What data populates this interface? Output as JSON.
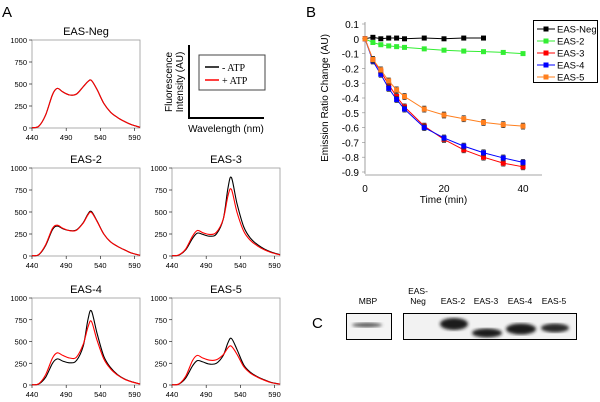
{
  "panel_labels": {
    "a": "A",
    "b": "B",
    "c": "C"
  },
  "colors": {
    "minus_atp": "#000000",
    "plus_atp": "#ff0000",
    "eas_neg": "#000000",
    "eas_2": "#33ee33",
    "eas_3": "#ff0000",
    "eas_4": "#0000ff",
    "eas_5": "#ff7f1e"
  },
  "schematic": {
    "ylabel_line1": "Fluorescence",
    "ylabel_line2": "Intensity (AU)",
    "xlabel": "Wavelength (nm)",
    "legend": [
      "- ATP",
      "+ ATP"
    ]
  },
  "chart_data": [
    {
      "type": "line",
      "title": "EAS-Neg",
      "xlim": [
        440,
        598
      ],
      "ylim": [
        0,
        1000
      ],
      "xticks": [
        440,
        490,
        540,
        590
      ],
      "yticks": [
        0,
        250,
        500,
        750,
        1000
      ],
      "x": [
        440,
        450,
        460,
        470,
        477,
        485,
        495,
        505,
        515,
        522,
        527,
        535,
        545,
        555,
        565,
        575,
        585,
        598
      ],
      "series": [
        {
          "name": "- ATP",
          "values": [
            3,
            20,
            150,
            380,
            450,
            410,
            375,
            385,
            470,
            530,
            540,
            440,
            280,
            180,
            120,
            75,
            40,
            8
          ]
        },
        {
          "name": "+ ATP",
          "values": [
            3,
            20,
            150,
            380,
            450,
            410,
            375,
            385,
            470,
            530,
            540,
            440,
            280,
            180,
            120,
            75,
            40,
            8
          ]
        }
      ]
    },
    {
      "type": "line",
      "title": "EAS-2",
      "xlim": [
        440,
        598
      ],
      "ylim": [
        0,
        1000
      ],
      "xticks": [
        440,
        490,
        540,
        590
      ],
      "yticks": [
        0,
        250,
        500,
        750,
        1000
      ],
      "x": [
        440,
        450,
        460,
        470,
        477,
        485,
        495,
        505,
        515,
        522,
        527,
        535,
        545,
        555,
        565,
        575,
        585,
        598
      ],
      "series": [
        {
          "name": "- ATP",
          "values": [
            3,
            15,
            120,
            300,
            340,
            310,
            290,
            295,
            380,
            480,
            505,
            400,
            250,
            160,
            110,
            70,
            35,
            8
          ]
        },
        {
          "name": "+ ATP",
          "values": [
            3,
            17,
            130,
            315,
            350,
            315,
            288,
            292,
            375,
            470,
            495,
            395,
            250,
            160,
            110,
            70,
            35,
            8
          ]
        }
      ]
    },
    {
      "type": "line",
      "title": "EAS-3",
      "xlim": [
        440,
        598
      ],
      "ylim": [
        0,
        1000
      ],
      "xticks": [
        440,
        490,
        540,
        590
      ],
      "yticks": [
        0,
        250,
        500,
        750,
        1000
      ],
      "x": [
        440,
        450,
        460,
        470,
        477,
        485,
        495,
        505,
        515,
        522,
        527,
        535,
        545,
        555,
        565,
        575,
        585,
        598
      ],
      "series": [
        {
          "name": "- ATP",
          "values": [
            3,
            10,
            70,
            200,
            260,
            245,
            225,
            250,
            420,
            780,
            890,
            600,
            330,
            200,
            130,
            80,
            45,
            15
          ]
        },
        {
          "name": "+ ATP",
          "values": [
            3,
            12,
            80,
            225,
            290,
            265,
            245,
            270,
            420,
            690,
            755,
            500,
            280,
            175,
            115,
            70,
            40,
            12
          ]
        }
      ]
    },
    {
      "type": "line",
      "title": "EAS-4",
      "xlim": [
        440,
        598
      ],
      "ylim": [
        0,
        1000
      ],
      "xticks": [
        440,
        490,
        540,
        590
      ],
      "yticks": [
        0,
        250,
        500,
        750,
        1000
      ],
      "x": [
        440,
        450,
        460,
        470,
        477,
        485,
        495,
        505,
        515,
        522,
        527,
        535,
        545,
        555,
        565,
        575,
        585,
        598
      ],
      "series": [
        {
          "name": "- ATP",
          "values": [
            3,
            12,
            90,
            250,
            300,
            275,
            255,
            280,
            450,
            760,
            850,
            600,
            330,
            200,
            120,
            70,
            40,
            12
          ]
        },
        {
          "name": "+ ATP",
          "values": [
            3,
            15,
            120,
            310,
            370,
            340,
            310,
            320,
            470,
            670,
            730,
            520,
            300,
            185,
            115,
            68,
            38,
            12
          ]
        }
      ]
    },
    {
      "type": "line",
      "title": "EAS-5",
      "xlim": [
        440,
        598
      ],
      "ylim": [
        0,
        1000
      ],
      "xticks": [
        440,
        490,
        540,
        590
      ],
      "yticks": [
        0,
        250,
        500,
        750,
        1000
      ],
      "x": [
        440,
        450,
        460,
        470,
        477,
        485,
        495,
        505,
        515,
        522,
        527,
        535,
        545,
        555,
        565,
        575,
        585,
        598
      ],
      "series": [
        {
          "name": "- ATP",
          "values": [
            3,
            10,
            80,
            220,
            280,
            265,
            240,
            250,
            340,
            490,
            535,
            410,
            230,
            145,
            95,
            60,
            30,
            10
          ]
        },
        {
          "name": "+ ATP",
          "values": [
            3,
            12,
            100,
            280,
            340,
            310,
            285,
            290,
            350,
            430,
            445,
            355,
            210,
            135,
            90,
            55,
            28,
            10
          ]
        }
      ]
    },
    {
      "type": "line",
      "title": "",
      "xlabel": "Time (min)",
      "ylabel": "Emission Ratio Change (AU)",
      "xlim": [
        0,
        45
      ],
      "ylim": [
        -0.9,
        0.1
      ],
      "xticks": [
        0,
        20,
        40
      ],
      "yticks": [
        0.1,
        0,
        -0.1,
        -0.2,
        -0.3,
        -0.4,
        -0.5,
        -0.6,
        -0.7,
        -0.8,
        -0.9
      ],
      "ytick_labels": [
        "0.1",
        "0",
        "-0.1",
        "-0.2",
        "-0.3",
        "-0.4",
        "-0.5",
        "-0.6",
        "-0.7",
        "-0.8",
        "-0.9"
      ],
      "legend": "top-right",
      "error_bars": 0.02,
      "series": [
        {
          "name": "EAS-Neg",
          "x": [
            0,
            2,
            4,
            6,
            8,
            10,
            15,
            20,
            25,
            30
          ],
          "values": [
            0,
            0.01,
            0,
            0.005,
            0.005,
            0,
            0.005,
            0,
            0.005,
            0.005
          ]
        },
        {
          "name": "EAS-2",
          "x": [
            0,
            2,
            4,
            6,
            8,
            10,
            15,
            20,
            25,
            30,
            35,
            40
          ],
          "values": [
            0,
            -0.025,
            -0.04,
            -0.048,
            -0.053,
            -0.058,
            -0.068,
            -0.077,
            -0.083,
            -0.087,
            -0.092,
            -0.1
          ]
        },
        {
          "name": "EAS-3",
          "x": [
            0,
            2,
            4,
            6,
            8,
            10,
            15,
            20,
            25,
            30,
            35,
            40
          ],
          "values": [
            0,
            -0.14,
            -0.22,
            -0.31,
            -0.39,
            -0.46,
            -0.59,
            -0.68,
            -0.75,
            -0.8,
            -0.84,
            -0.865
          ]
        },
        {
          "name": "EAS-4",
          "x": [
            0,
            2,
            4,
            6,
            8,
            10,
            15,
            20,
            25,
            30,
            35,
            40
          ],
          "values": [
            0,
            -0.15,
            -0.24,
            -0.335,
            -0.41,
            -0.475,
            -0.6,
            -0.67,
            -0.725,
            -0.77,
            -0.805,
            -0.835
          ]
        },
        {
          "name": "EAS-5",
          "x": [
            0,
            2,
            4,
            6,
            8,
            10,
            15,
            20,
            25,
            30,
            35,
            40
          ],
          "values": [
            0,
            -0.14,
            -0.21,
            -0.285,
            -0.345,
            -0.39,
            -0.475,
            -0.515,
            -0.54,
            -0.565,
            -0.58,
            -0.59
          ]
        }
      ]
    }
  ],
  "blot": {
    "lanes": [
      "MBP",
      "EAS-Neg",
      "EAS-2",
      "EAS-3",
      "EAS-4",
      "EAS-5"
    ],
    "neg_label_line1": "EAS-",
    "neg_label_line2": "Neg"
  }
}
